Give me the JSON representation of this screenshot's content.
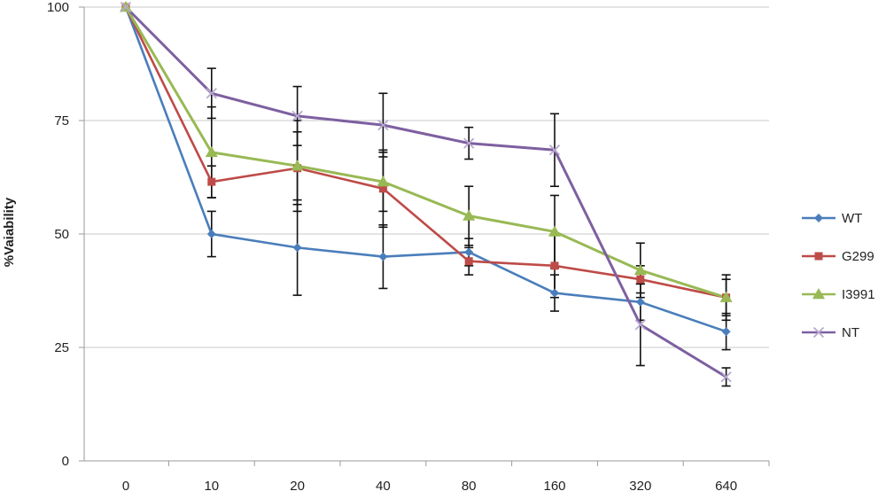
{
  "chart_data": {
    "type": "line",
    "title": "",
    "xlabel": "",
    "ylabel": "%Vaiability",
    "categories": [
      "0",
      "10",
      "20",
      "40",
      "80",
      "160",
      "320",
      "640"
    ],
    "ylim": [
      0,
      100
    ],
    "yticks": [
      0,
      25,
      50,
      75,
      100
    ],
    "grid": "horizontal",
    "legend_position": "right",
    "series": [
      {
        "name": "WT",
        "color": "#4a7ebb",
        "marker": "diamond",
        "values": [
          100,
          50,
          47,
          45,
          46,
          37,
          35,
          28.5
        ],
        "errors": [
          0,
          5,
          10.5,
          7,
          3,
          4,
          4,
          4
        ]
      },
      {
        "name": "G299",
        "color": "#be4b48",
        "marker": "square",
        "values": [
          100,
          61.5,
          64.5,
          60,
          44,
          43,
          40,
          36
        ],
        "errors": [
          0,
          3.5,
          8,
          8.5,
          3,
          7,
          3,
          4
        ]
      },
      {
        "name": "I3991",
        "color": "#98b954",
        "marker": "triangle",
        "values": [
          100,
          68,
          65,
          61.5,
          54,
          50.5,
          42,
          36
        ],
        "errors": [
          0,
          10,
          10,
          6.5,
          6.5,
          8,
          6,
          5
        ]
      },
      {
        "name": "NT",
        "color": "#7d60a0",
        "marker": "x",
        "values": [
          100,
          81,
          76,
          74,
          70,
          68.5,
          30,
          18.5
        ],
        "errors": [
          0,
          5.5,
          6.5,
          7,
          3.5,
          8,
          9,
          2
        ]
      }
    ]
  }
}
